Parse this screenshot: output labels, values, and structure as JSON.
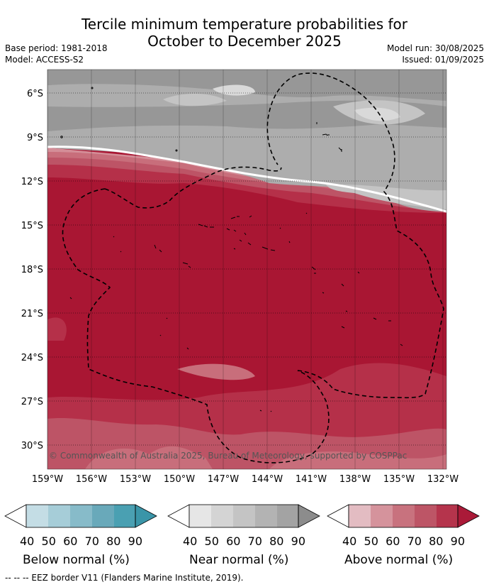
{
  "header": {
    "title_line1": "Tercile minimum temperature probabilities for",
    "title_line2": "October to December 2025",
    "base_period": "Base period: 1981-2018",
    "model": "Model: ACCESS-S2",
    "model_run": "Model run: 30/08/2025",
    "issued": "Issued: 01/09/2025"
  },
  "map": {
    "lat_labels": [
      "6°S",
      "9°S",
      "12°S",
      "15°S",
      "18°S",
      "21°S",
      "24°S",
      "27°S",
      "30°S"
    ],
    "lon_labels": [
      "159°W",
      "156°W",
      "153°W",
      "150°W",
      "147°W",
      "144°W",
      "141°W",
      "138°W",
      "135°W",
      "132°W"
    ],
    "copyright": "© Commonwealth of Australia 2025, Bureau of Meteorology, supported by COSPPac",
    "colors": {
      "near": [
        "#f0f0f0",
        "#d9d9d9",
        "#c4c4c4",
        "#adadad",
        "#979797",
        "#858585"
      ],
      "above": [
        "#ddb3bb",
        "#d48e98",
        "#c86e7b",
        "#bd5466",
        "#b53049",
        "#a91633"
      ]
    }
  },
  "legends": [
    {
      "label": "Below normal (%)",
      "ticks": [
        "40",
        "50",
        "60",
        "70",
        "80",
        "90"
      ],
      "colors": [
        "#c4dde5",
        "#a6cdd8",
        "#87bbc9",
        "#69a9ba",
        "#4aa0b2",
        "#3a95a8"
      ]
    },
    {
      "label": "Near normal (%)",
      "ticks": [
        "40",
        "50",
        "60",
        "70",
        "80",
        "90"
      ],
      "colors": [
        "#e6e6e6",
        "#d4d4d4",
        "#c4c4c4",
        "#b3b3b3",
        "#a3a3a3",
        "#8c8c8c"
      ]
    },
    {
      "label": "Above normal (%)",
      "ticks": [
        "40",
        "50",
        "60",
        "70",
        "80",
        "90"
      ],
      "colors": [
        "#e3bcc2",
        "#d5939c",
        "#c8727e",
        "#bd5566",
        "#b5344c",
        "#aa1a38"
      ]
    }
  ],
  "footer": "--  --  -- EEZ border V11 (Flanders Marine Institute, 2019)."
}
